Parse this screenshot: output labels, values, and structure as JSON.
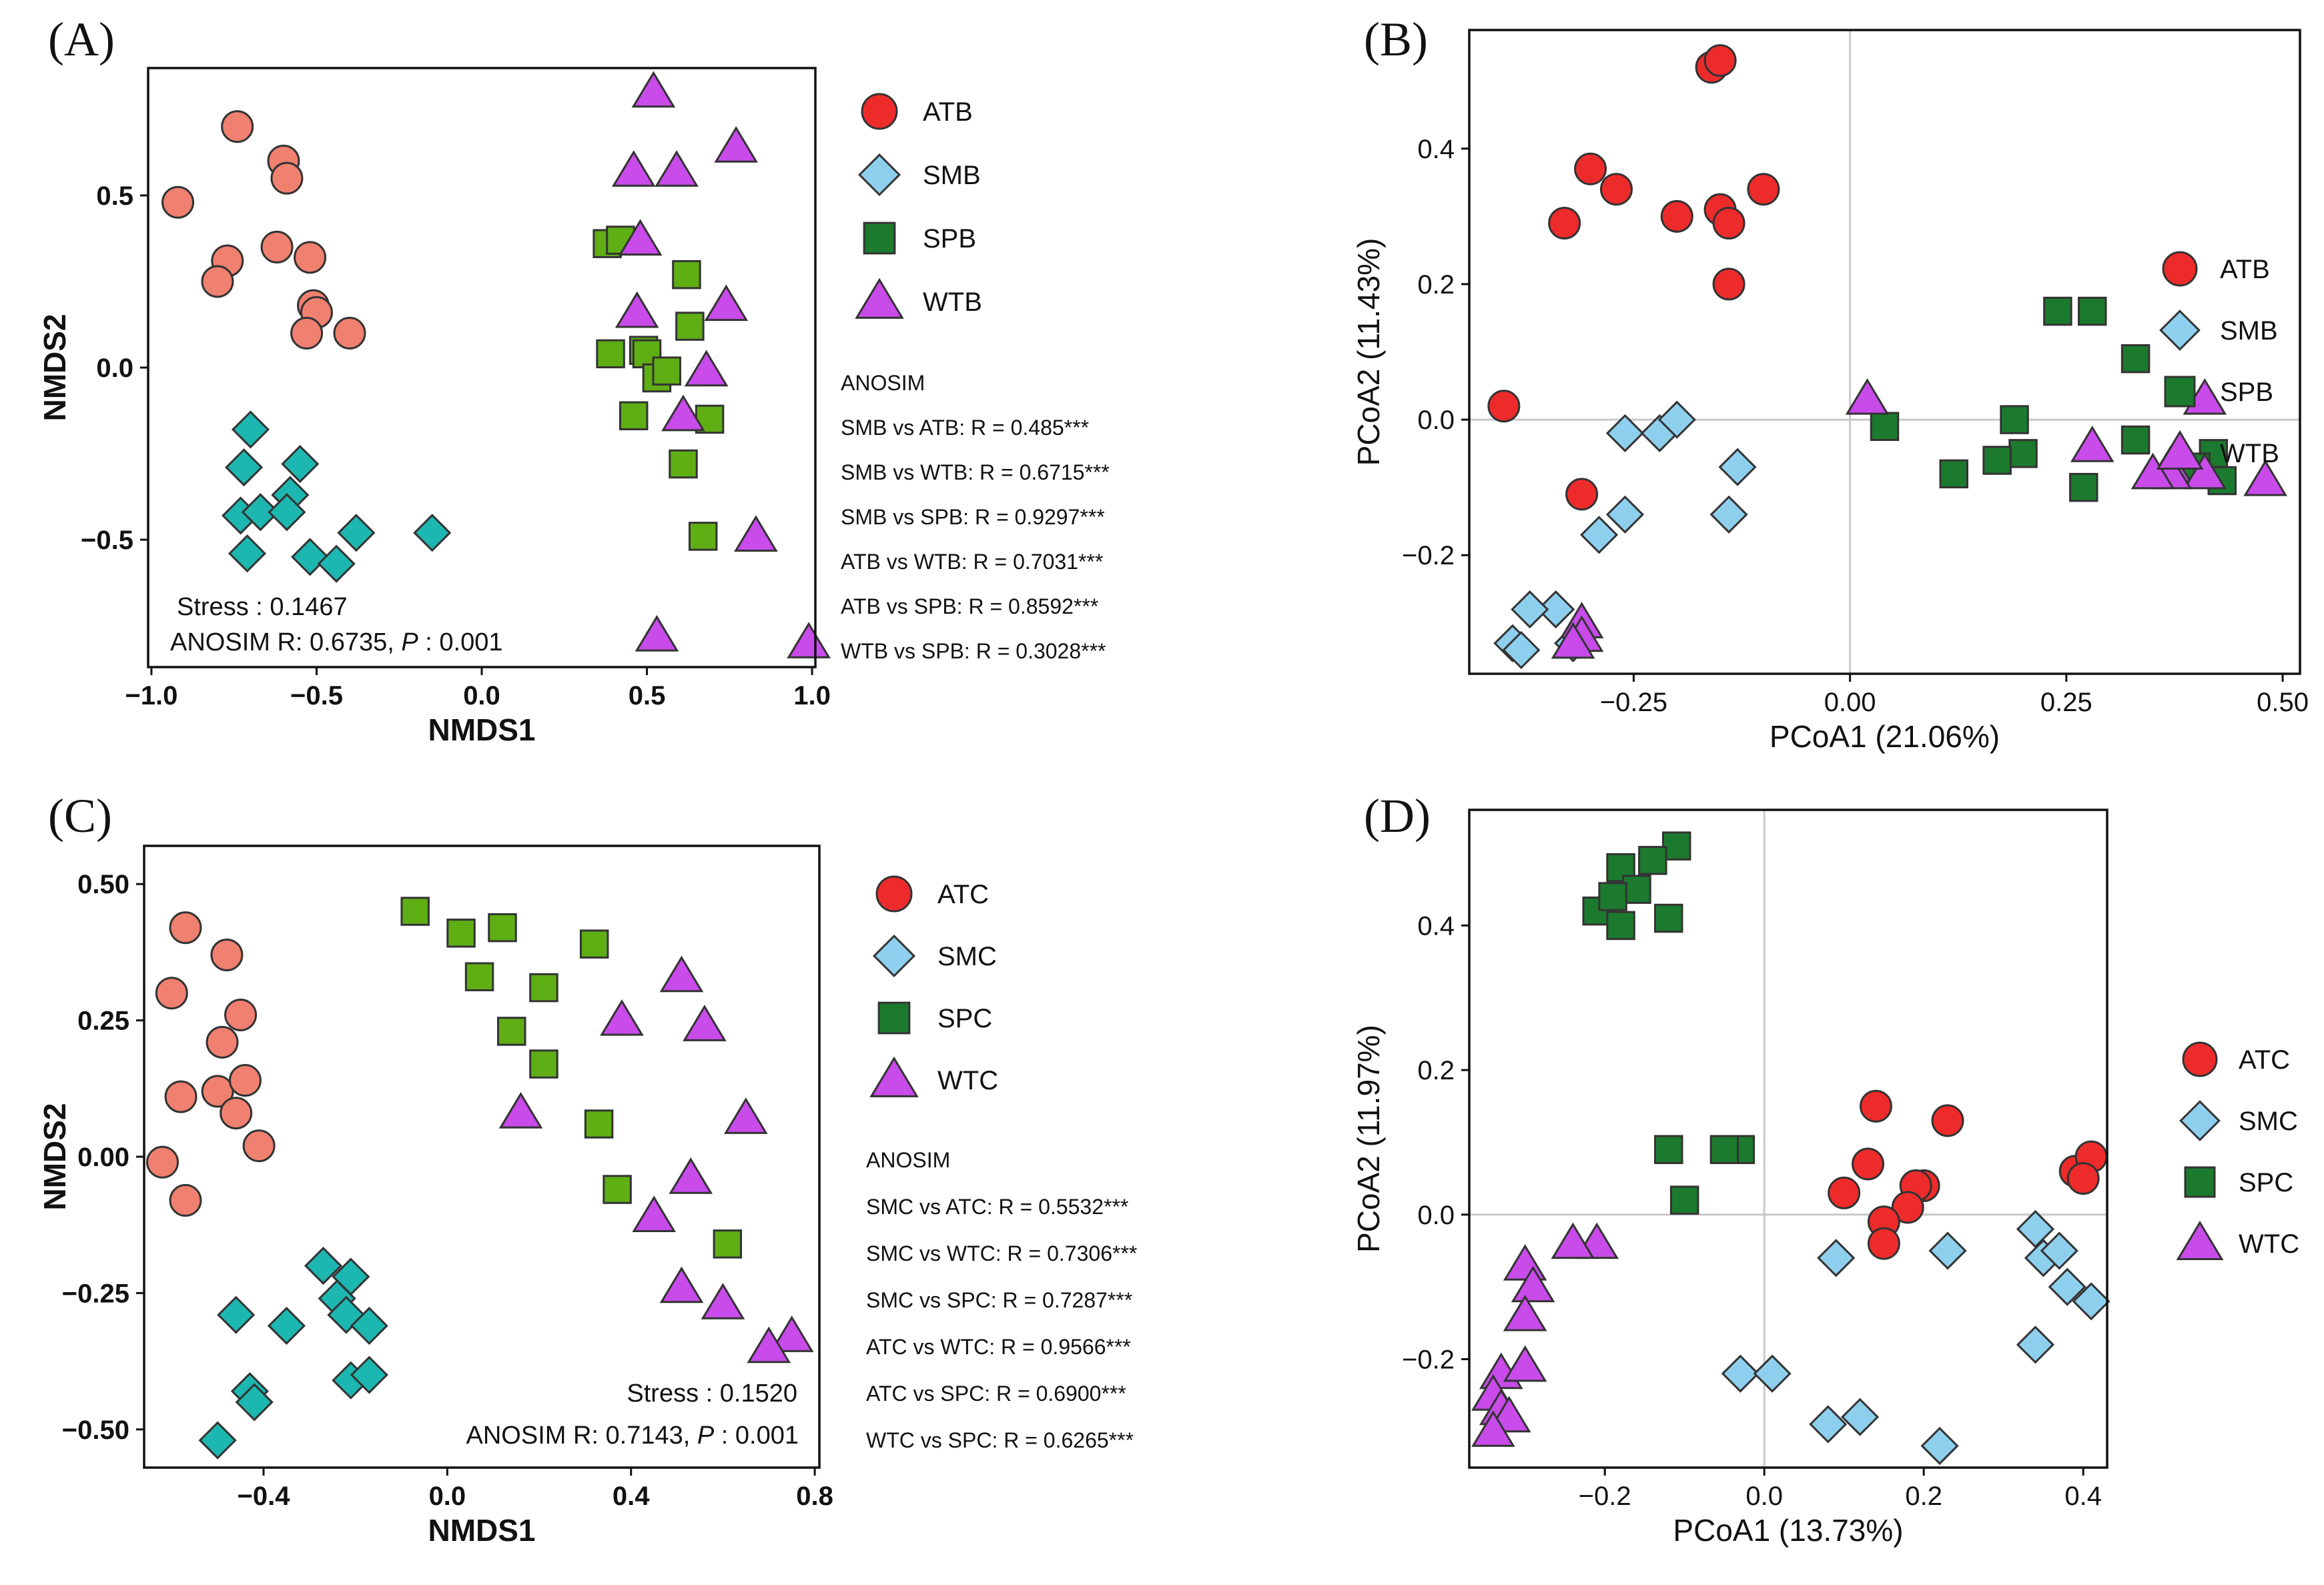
{
  "colors": {
    "red_bright": "#EE2B2B",
    "salmon": "#F08070",
    "teal": "#1CB7B0",
    "lightblue": "#8ECFEE",
    "darkgreen": "#1C7A2E",
    "limegreen": "#5FAE14",
    "purple": "#C84BEA"
  },
  "chart_data": [
    {
      "id": "A",
      "panel_label": "(A)",
      "type": "scatter",
      "xlabel": "NMDS1",
      "ylabel": "NMDS2",
      "xlim": [
        -1.01,
        1.01
      ],
      "ylim": [
        -0.87,
        0.87
      ],
      "xticks": [
        -1.0,
        -0.5,
        0.0,
        0.5,
        1.0
      ],
      "xtick_labels": [
        "−1.0",
        "−0.5",
        "0.0",
        "0.5",
        "1.0"
      ],
      "yticks": [
        -0.5,
        0.0,
        0.5
      ],
      "ytick_labels": [
        "−0.5",
        "0.0",
        "0.5"
      ],
      "zero_lines": false,
      "stress_label": "Stress : 0.1467",
      "anosim_prefix": "ANOSIM R: 0.6735, ",
      "anosim_p": "P",
      "anosim_suffix": " : 0.001",
      "legend": [
        {
          "name": "ATB",
          "shape": "circle",
          "color": "#EE2B2B"
        },
        {
          "name": "SMB",
          "shape": "diamond",
          "color": "#8ECFEE"
        },
        {
          "name": "SPB",
          "shape": "square",
          "color": "#1C7A2E"
        },
        {
          "name": "WTB",
          "shape": "triangle",
          "color": "#C84BEA"
        }
      ],
      "anosim_title": "ANOSIM",
      "anosim_lines": [
        "SMB vs ATB:  R = 0.485***",
        "SMB vs WTB: R = 0.6715***",
        "SMB vs SPB: R = 0.9297***",
        "ATB vs WTB: R = 0.7031***",
        "ATB vs SPB: R = 0.8592***",
        "WTB vs SPB: R = 0.3028***"
      ],
      "series": [
        {
          "name": "ATB",
          "shape": "circle",
          "color": "#F08070",
          "x": [
            -0.92,
            -0.74,
            -0.6,
            -0.59,
            -0.77,
            -0.8,
            -0.62,
            -0.52,
            -0.51,
            -0.5,
            -0.53,
            -0.4
          ],
          "y": [
            0.48,
            0.7,
            0.6,
            0.55,
            0.31,
            0.25,
            0.35,
            0.32,
            0.18,
            0.16,
            0.1,
            0.1
          ]
        },
        {
          "name": "SMB",
          "shape": "diamond",
          "color": "#1CB7B0",
          "x": [
            -0.7,
            -0.72,
            -0.55,
            -0.73,
            -0.67,
            -0.58,
            -0.59,
            -0.38,
            -0.15,
            -0.52,
            -0.44,
            -0.71
          ],
          "y": [
            -0.18,
            -0.29,
            -0.28,
            -0.43,
            -0.42,
            -0.37,
            -0.42,
            -0.48,
            -0.48,
            -0.55,
            -0.57,
            -0.54
          ]
        },
        {
          "name": "SPB",
          "shape": "square",
          "color": "#5FAE14",
          "x": [
            0.38,
            0.42,
            0.39,
            0.62,
            0.49,
            0.5,
            0.53,
            0.63,
            0.56,
            0.46,
            0.69,
            0.61,
            0.67
          ],
          "y": [
            0.36,
            0.37,
            0.04,
            0.27,
            0.05,
            0.04,
            -0.03,
            0.12,
            -0.01,
            -0.14,
            -0.15,
            -0.28,
            -0.49
          ]
        },
        {
          "name": "WTB",
          "shape": "triangle",
          "color": "#C84BEA",
          "x": [
            0.52,
            0.77,
            0.46,
            0.59,
            0.48,
            0.47,
            0.74,
            0.68,
            0.61,
            0.83,
            0.53,
            0.99
          ],
          "y": [
            0.8,
            0.64,
            0.57,
            0.57,
            0.37,
            0.16,
            0.18,
            -0.01,
            -0.14,
            -0.49,
            -0.78,
            -0.8
          ]
        }
      ]
    },
    {
      "id": "B",
      "panel_label": "(B)",
      "type": "scatter",
      "xlabel": "PCoA1 (21.06%)",
      "ylabel": "PCoA2 (11.43%)",
      "xlim": [
        -0.44,
        0.52
      ],
      "ylim": [
        -0.375,
        0.575
      ],
      "xticks": [
        -0.25,
        0.0,
        0.25,
        0.5
      ],
      "xtick_labels": [
        "−0.25",
        "0.00",
        "0.25",
        "0.50"
      ],
      "yticks": [
        -0.2,
        0.0,
        0.2,
        0.4
      ],
      "ytick_labels": [
        "−0.2",
        "0.0",
        "0.2",
        "0.4"
      ],
      "zero_lines": true,
      "legend": [
        {
          "name": "ATB",
          "shape": "circle",
          "color": "#EE2B2B"
        },
        {
          "name": "SMB",
          "shape": "diamond",
          "color": "#8ECFEE"
        },
        {
          "name": "SPB",
          "shape": "square",
          "color": "#1C7A2E"
        },
        {
          "name": "WTB",
          "shape": "triangle",
          "color": "#C84BEA"
        }
      ],
      "series": [
        {
          "name": "ATB",
          "shape": "circle",
          "color": "#EE2B2B",
          "x": [
            -0.16,
            -0.15,
            -0.3,
            -0.33,
            -0.27,
            -0.2,
            -0.15,
            -0.1,
            -0.14,
            -0.14,
            -0.4,
            -0.31
          ],
          "y": [
            0.52,
            0.53,
            0.37,
            0.29,
            0.34,
            0.3,
            0.31,
            0.34,
            0.29,
            0.2,
            0.02,
            -0.11
          ]
        },
        {
          "name": "SMB",
          "shape": "diamond",
          "color": "#8ECFEE",
          "x": [
            -0.26,
            -0.22,
            -0.2,
            -0.13,
            -0.26,
            -0.29,
            -0.14,
            -0.34,
            -0.37,
            -0.39,
            -0.38,
            -0.32
          ],
          "y": [
            -0.02,
            -0.02,
            0.0,
            -0.07,
            -0.14,
            -0.17,
            -0.14,
            -0.28,
            -0.28,
            -0.33,
            -0.34,
            -0.33
          ]
        },
        {
          "name": "SPB",
          "shape": "square",
          "color": "#1C7A2E",
          "x": [
            0.24,
            0.28,
            0.33,
            0.04,
            0.19,
            0.2,
            0.12,
            0.17,
            0.27,
            0.33,
            0.42,
            0.4,
            0.43
          ],
          "y": [
            0.16,
            0.16,
            0.09,
            -0.01,
            0.0,
            -0.05,
            -0.08,
            -0.06,
            -0.1,
            -0.03,
            -0.05,
            -0.07,
            -0.09
          ]
        },
        {
          "name": "WTB",
          "shape": "triangle",
          "color": "#C84BEA",
          "x": [
            0.02,
            0.41,
            0.28,
            0.38,
            0.37,
            0.41,
            0.37,
            0.48,
            0.35,
            -0.31,
            -0.31,
            -0.32
          ],
          "y": [
            0.03,
            0.03,
            -0.04,
            -0.05,
            -0.07,
            -0.08,
            -0.08,
            -0.09,
            -0.08,
            -0.3,
            -0.32,
            -0.33
          ]
        }
      ]
    },
    {
      "id": "C",
      "panel_label": "(C)",
      "type": "scatter",
      "xlabel": "NMDS1",
      "ylabel": "NMDS2",
      "xlim": [
        -0.66,
        0.81
      ],
      "ylim": [
        -0.57,
        0.57
      ],
      "xticks": [
        -0.4,
        0.0,
        0.4,
        0.8
      ],
      "xtick_labels": [
        "−0.4",
        "0.0",
        "0.4",
        "0.8"
      ],
      "yticks": [
        -0.5,
        -0.25,
        0.0,
        0.25,
        0.5
      ],
      "ytick_labels": [
        "−0.50",
        "−0.25",
        "0.00",
        "0.25",
        "0.50"
      ],
      "zero_lines": false,
      "stress_label": "Stress : 0.1520",
      "anosim_prefix": "ANOSIM R: 0.7143, ",
      "anosim_p": "P",
      "anosim_suffix": " : 0.001",
      "legend": [
        {
          "name": "ATC",
          "shape": "circle",
          "color": "#EE2B2B"
        },
        {
          "name": "SMC",
          "shape": "diamond",
          "color": "#8ECFEE"
        },
        {
          "name": "SPC",
          "shape": "square",
          "color": "#1C7A2E"
        },
        {
          "name": "WTC",
          "shape": "triangle",
          "color": "#C84BEA"
        }
      ],
      "anosim_title": "ANOSIM",
      "anosim_lines": [
        "SMC vs ATC:  R = 0.5532***",
        "SMC vs WTC: R = 0.7306***",
        "SMC vs SPC: R = 0.7287***",
        "ATC vs WTC: R = 0.9566***",
        "ATC vs SPC: R = 0.6900***",
        "WTC vs SPC: R = 0.6265***"
      ],
      "series": [
        {
          "name": "ATC",
          "shape": "circle",
          "color": "#F08070",
          "x": [
            -0.57,
            -0.48,
            -0.6,
            -0.45,
            -0.49,
            -0.58,
            -0.5,
            -0.44,
            -0.46,
            -0.41,
            -0.62,
            -0.57
          ],
          "y": [
            0.42,
            0.37,
            0.3,
            0.26,
            0.21,
            0.11,
            0.12,
            0.14,
            0.08,
            0.02,
            -0.01,
            -0.08
          ]
        },
        {
          "name": "SMC",
          "shape": "diamond",
          "color": "#1CB7B0",
          "x": [
            -0.27,
            -0.21,
            -0.46,
            -0.35,
            -0.24,
            -0.22,
            -0.17,
            -0.21,
            -0.17,
            -0.43,
            -0.42,
            -0.5
          ],
          "y": [
            -0.2,
            -0.22,
            -0.29,
            -0.31,
            -0.26,
            -0.29,
            -0.31,
            -0.41,
            -0.4,
            -0.43,
            -0.45,
            -0.52
          ]
        },
        {
          "name": "SPC",
          "shape": "square",
          "color": "#5FAE14",
          "x": [
            -0.07,
            0.03,
            0.12,
            0.07,
            0.32,
            0.21,
            0.14,
            0.21,
            0.33,
            0.37,
            0.61
          ],
          "y": [
            0.45,
            0.41,
            0.42,
            0.33,
            0.39,
            0.31,
            0.23,
            0.17,
            0.06,
            -0.06,
            -0.16
          ]
        },
        {
          "name": "WTC",
          "shape": "triangle",
          "color": "#C84BEA",
          "x": [
            0.38,
            0.51,
            0.56,
            0.16,
            0.65,
            0.53,
            0.45,
            0.51,
            0.6,
            0.75,
            0.7
          ],
          "y": [
            0.25,
            0.33,
            0.24,
            0.08,
            0.07,
            -0.04,
            -0.11,
            -0.24,
            -0.27,
            -0.33,
            -0.35
          ]
        }
      ]
    },
    {
      "id": "D",
      "panel_label": "(D)",
      "type": "scatter",
      "xlabel": "PCoA1 (13.73%)",
      "ylabel": "PCoA2 (11.97%)",
      "xlim": [
        -0.37,
        0.43
      ],
      "ylim": [
        -0.35,
        0.56
      ],
      "xticks": [
        -0.2,
        0.0,
        0.2,
        0.4
      ],
      "xtick_labels": [
        "−0.2",
        "0.0",
        "0.2",
        "0.4"
      ],
      "yticks": [
        -0.2,
        0.0,
        0.2,
        0.4
      ],
      "ytick_labels": [
        "−0.2",
        "0.0",
        "0.2",
        "0.4"
      ],
      "zero_lines": true,
      "legend": [
        {
          "name": "ATC",
          "shape": "circle",
          "color": "#EE2B2B"
        },
        {
          "name": "SMC",
          "shape": "diamond",
          "color": "#8ECFEE"
        },
        {
          "name": "SPC",
          "shape": "square",
          "color": "#1C7A2E"
        },
        {
          "name": "WTC",
          "shape": "triangle",
          "color": "#C84BEA"
        }
      ],
      "series": [
        {
          "name": "ATC",
          "shape": "circle",
          "color": "#EE2B2B",
          "x": [
            0.14,
            0.23,
            0.13,
            0.1,
            0.2,
            0.19,
            0.18,
            0.15,
            0.15,
            0.39,
            0.41,
            0.4
          ],
          "y": [
            0.15,
            0.13,
            0.07,
            0.03,
            0.04,
            0.04,
            0.01,
            -0.01,
            -0.04,
            0.06,
            0.08,
            0.05
          ]
        },
        {
          "name": "SMC",
          "shape": "diamond",
          "color": "#8ECFEE",
          "x": [
            0.09,
            0.23,
            0.34,
            0.35,
            0.37,
            0.38,
            0.41,
            0.34,
            -0.03,
            0.01,
            0.08,
            0.12,
            0.22
          ],
          "y": [
            -0.06,
            -0.05,
            -0.02,
            -0.06,
            -0.05,
            -0.1,
            -0.12,
            -0.18,
            -0.22,
            -0.22,
            -0.29,
            -0.28,
            -0.32
          ]
        },
        {
          "name": "SPC",
          "shape": "square",
          "color": "#1C7A2E",
          "x": [
            -0.11,
            -0.14,
            -0.18,
            -0.16,
            -0.21,
            -0.18,
            -0.12,
            -0.19,
            -0.12,
            -0.03,
            -0.05,
            -0.1
          ],
          "y": [
            0.51,
            0.49,
            0.48,
            0.45,
            0.42,
            0.4,
            0.41,
            0.44,
            0.09,
            0.09,
            0.09,
            0.02
          ]
        },
        {
          "name": "WTC",
          "shape": "triangle",
          "color": "#C84BEA",
          "x": [
            -0.21,
            -0.24,
            -0.3,
            -0.29,
            -0.3,
            -0.33,
            -0.3,
            -0.34,
            -0.33,
            -0.32,
            -0.34
          ],
          "y": [
            -0.04,
            -0.04,
            -0.07,
            -0.1,
            -0.14,
            -0.22,
            -0.21,
            -0.25,
            -0.27,
            -0.28,
            -0.3
          ]
        }
      ]
    }
  ]
}
